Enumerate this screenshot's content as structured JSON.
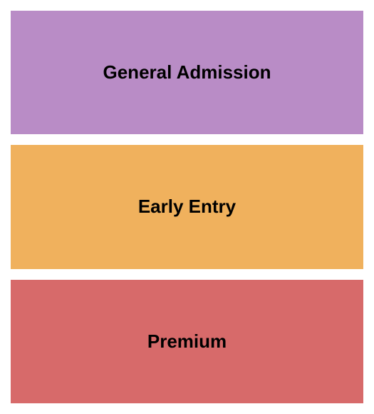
{
  "chart": {
    "type": "infographic",
    "background_color": "#ffffff",
    "padding": 15,
    "gap": 15,
    "label_font_family": "Arial, Helvetica, sans-serif",
    "label_font_weight": "bold",
    "label_color": "#000000",
    "sections": [
      {
        "label": "General Admission",
        "background_color": "#b98cc6",
        "font_size": 26
      },
      {
        "label": "Early Entry",
        "background_color": "#f0b15d",
        "font_size": 26
      },
      {
        "label": "Premium",
        "background_color": "#d76a6a",
        "font_size": 26
      }
    ]
  }
}
